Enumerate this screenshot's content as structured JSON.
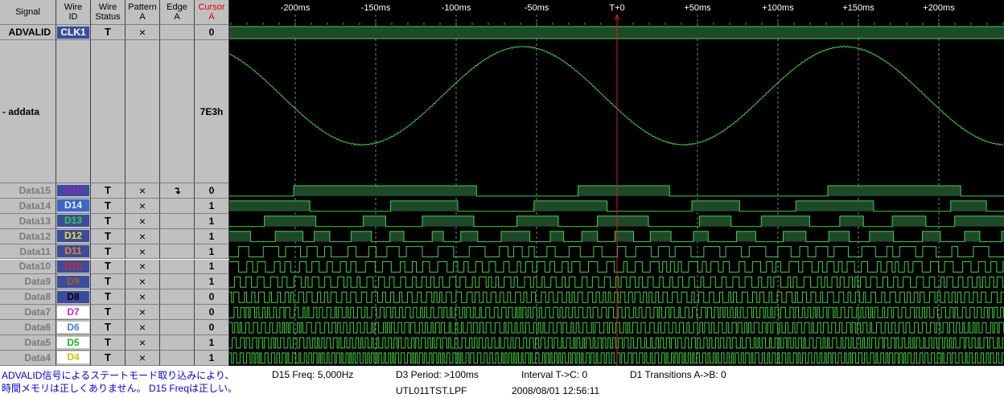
{
  "header": {
    "columns": [
      [
        "Signal"
      ],
      [
        "Wire",
        "ID"
      ],
      [
        "Wire",
        "Status"
      ],
      [
        "Pattern",
        "A"
      ],
      [
        "Edge",
        "A"
      ],
      [
        "Cursor",
        "A"
      ]
    ]
  },
  "time_axis": {
    "ticks": [
      "-200ms",
      "-150ms",
      "-100ms",
      "-50ms",
      "T+0",
      "+50ms",
      "+100ms",
      "+150ms",
      "+200ms"
    ]
  },
  "cursor": {
    "label": "A"
  },
  "rows": [
    {
      "signal": "ADVALID",
      "wire_id": "CLK1",
      "id_color": "#ffffff",
      "id_bg": "#3a4d9c",
      "wire_status": "T",
      "pattern": "×",
      "cursor": "0"
    },
    {
      "signal": "- addata",
      "cursor": "7E3h"
    },
    {
      "signal": "Data15",
      "wire_id": "D15",
      "id_color": "#a020c0",
      "id_bg": "#3a4d9c",
      "wire_status": "T",
      "pattern": "×",
      "edge": "↴",
      "cursor": "0"
    },
    {
      "signal": "Data14",
      "wire_id": "D14",
      "id_color": "#e0f0ff",
      "id_bg": "#3c66c8",
      "wire_status": "T",
      "pattern": "×",
      "cursor": "1"
    },
    {
      "signal": "Data13",
      "wire_id": "D13",
      "id_color": "#30d040",
      "id_bg": "#3a4d9c",
      "wire_status": "T",
      "pattern": "×",
      "cursor": "1"
    },
    {
      "signal": "Data12",
      "wire_id": "D12",
      "id_color": "#f0e020",
      "id_bg": "#3a4d9c",
      "wire_status": "T",
      "pattern": "×",
      "cursor": "1"
    },
    {
      "signal": "Data11",
      "wire_id": "D11",
      "id_color": "#f08020",
      "id_bg": "#3a4d9c",
      "wire_status": "T",
      "pattern": "×",
      "cursor": "1"
    },
    {
      "signal": "Data10",
      "wire_id": "D10",
      "id_color": "#e02020",
      "id_bg": "#3a4d9c",
      "wire_status": "T",
      "pattern": "×",
      "cursor": "1"
    },
    {
      "signal": "Data9",
      "wire_id": "D9",
      "id_color": "#a06020",
      "id_bg": "#3a4d9c",
      "wire_status": "T",
      "pattern": "×",
      "cursor": "1"
    },
    {
      "signal": "Data8",
      "wire_id": "D8",
      "id_color": "#000000",
      "id_bg": "#3a4d9c",
      "wire_status": "T",
      "pattern": "×",
      "cursor": "0"
    },
    {
      "signal": "Data7",
      "wire_id": "D7",
      "id_color": "#d020d0",
      "id_bg": "#ffffff",
      "wire_status": "T",
      "pattern": "×",
      "cursor": "0"
    },
    {
      "signal": "Data6",
      "wire_id": "D6",
      "id_color": "#4080e0",
      "id_bg": "#ffffff",
      "wire_status": "T",
      "pattern": "×",
      "cursor": "0"
    },
    {
      "signal": "Data5",
      "wire_id": "D5",
      "id_color": "#20b020",
      "id_bg": "#ffffff",
      "wire_status": "T",
      "pattern": "×",
      "cursor": "1"
    },
    {
      "signal": "Data4",
      "wire_id": "D4",
      "id_color": "#d0c000",
      "id_bg": "#ffffff",
      "wire_status": "T",
      "pattern": "×",
      "cursor": "1"
    }
  ],
  "status_bar": {
    "note": [
      "ADVALID信号によるステートモード取り込みにより、",
      "時間メモリは正しくありません。 D15 Freqは正しい。"
    ],
    "d15_freq": "D15 Freq: 5,000Hz",
    "d3_period": "D3 Period: >100ms",
    "interval": "Interval T->C: 0",
    "transitions": "D1 Transitions A->B: 0",
    "file": "UTL011TST.LPF",
    "timestamp": "2008/08/01 12:56:11"
  }
}
